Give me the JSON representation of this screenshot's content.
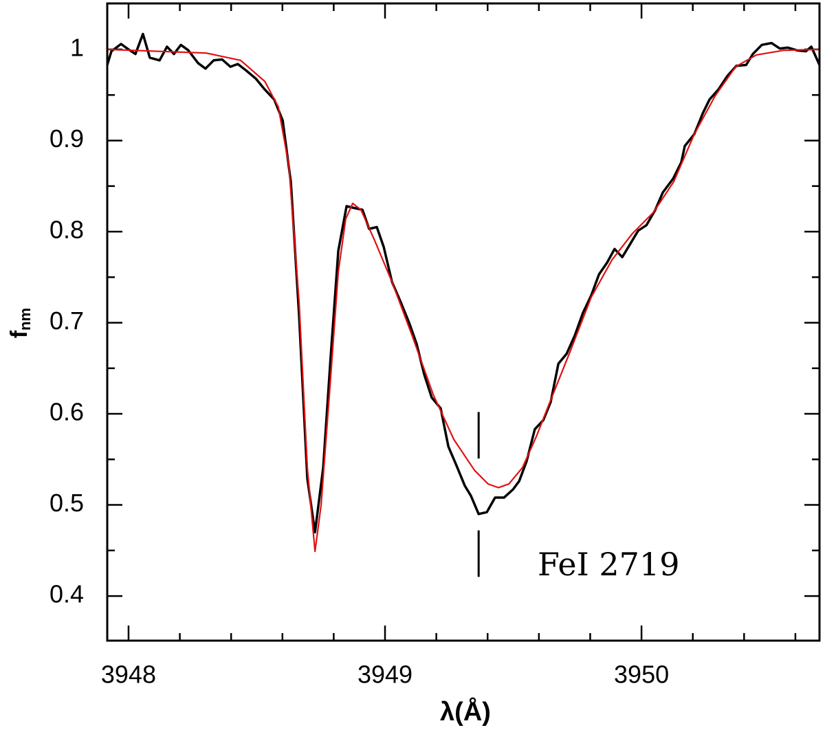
{
  "chart_data": {
    "type": "line",
    "xlabel": "λ(Å)",
    "ylabel": "f",
    "ylabel_sub": "nm",
    "annotation": "FeI 2719",
    "marker": {
      "x": 3949.365,
      "ranges": [
        [
          0.551,
          0.602
        ],
        [
          0.421,
          0.472
        ]
      ]
    },
    "xlim": [
      3947.917,
      3950.694
    ],
    "ylim": [
      0.351,
      1.0505
    ],
    "xticks": [
      3948,
      3949,
      3950
    ],
    "yticks": [
      0.4,
      0.5,
      0.6,
      0.7,
      0.8,
      0.9,
      1
    ],
    "xminorticks": [
      3948.2,
      3948.4,
      3948.6,
      3948.8,
      3949.2,
      3949.4,
      3949.6,
      3949.8,
      3950.2,
      3950.4,
      3950.6
    ],
    "yminorticks": [
      0.45,
      0.55,
      0.65,
      0.75,
      0.85,
      0.95
    ],
    "series": [
      {
        "color": "#000000",
        "x": [
          3947.917,
          3947.933,
          3947.971,
          3948.0,
          3948.027,
          3948.056,
          3948.083,
          3948.121,
          3948.15,
          3948.177,
          3948.204,
          3948.233,
          3948.271,
          3948.3,
          3948.332,
          3948.365,
          3948.397,
          3948.426,
          3948.458,
          3948.496,
          3948.531,
          3948.568,
          3948.601,
          3948.633,
          3948.665,
          3948.697,
          3948.727,
          3948.759,
          3948.788,
          3948.818,
          3948.85,
          3948.879,
          3948.912,
          3948.938,
          3948.968,
          3948.995,
          3949.027,
          3949.062,
          3949.094,
          3949.123,
          3949.153,
          3949.182,
          3949.217,
          3949.247,
          3949.279,
          3949.311,
          3949.335,
          3949.365,
          3949.397,
          3949.429,
          3949.464,
          3949.499,
          3949.523,
          3949.552,
          3949.584,
          3949.617,
          3949.646,
          3949.676,
          3949.708,
          3949.74,
          3949.772,
          3949.804,
          3949.834,
          3949.866,
          3949.895,
          3949.925,
          3949.957,
          3949.987,
          3950.019,
          3950.054,
          3950.083,
          3950.123,
          3950.155,
          3950.169,
          3950.206,
          3950.239,
          3950.265,
          3950.3,
          3950.335,
          3950.37,
          3950.408,
          3950.434,
          3950.469,
          3950.507,
          3950.539,
          3950.571,
          3950.606,
          3950.641,
          3950.662,
          3950.694
        ],
        "values": [
          0.983,
          0.998,
          1.006,
          1.0,
          0.995,
          1.017,
          0.991,
          0.988,
          1.003,
          0.995,
          1.005,
          0.999,
          0.985,
          0.979,
          0.988,
          0.989,
          0.981,
          0.984,
          0.977,
          0.968,
          0.956,
          0.945,
          0.922,
          0.854,
          0.707,
          0.529,
          0.47,
          0.541,
          0.662,
          0.779,
          0.828,
          0.826,
          0.824,
          0.803,
          0.805,
          0.783,
          0.745,
          0.722,
          0.7,
          0.677,
          0.643,
          0.618,
          0.606,
          0.564,
          0.543,
          0.521,
          0.51,
          0.49,
          0.492,
          0.508,
          0.508,
          0.517,
          0.526,
          0.548,
          0.583,
          0.593,
          0.613,
          0.655,
          0.666,
          0.686,
          0.711,
          0.73,
          0.753,
          0.766,
          0.781,
          0.772,
          0.787,
          0.801,
          0.807,
          0.824,
          0.843,
          0.858,
          0.876,
          0.894,
          0.907,
          0.93,
          0.945,
          0.956,
          0.971,
          0.982,
          0.983,
          0.995,
          1.005,
          1.007,
          1.001,
          1.002,
          0.999,
          0.998,
          1.003,
          0.983
        ]
      },
      {
        "color": "#e01010",
        "x": [
          3947.917,
          3948.303,
          3948.437,
          3948.531,
          3948.584,
          3948.625,
          3948.665,
          3948.697,
          3948.727,
          3948.751,
          3948.786,
          3948.818,
          3948.847,
          3948.874,
          3948.906,
          3948.96,
          3949.027,
          3949.107,
          3949.188,
          3949.268,
          3949.349,
          3949.402,
          3949.442,
          3949.483,
          3949.536,
          3949.59,
          3949.643,
          3949.724,
          3949.804,
          3949.885,
          3949.965,
          3950.046,
          3950.126,
          3950.206,
          3950.287,
          3950.367,
          3950.448,
          3950.555,
          3950.694
        ],
        "values": [
          1.0,
          0.996,
          0.988,
          0.965,
          0.937,
          0.873,
          0.722,
          0.541,
          0.449,
          0.5,
          0.632,
          0.756,
          0.814,
          0.831,
          0.824,
          0.79,
          0.745,
          0.685,
          0.621,
          0.572,
          0.538,
          0.523,
          0.519,
          0.523,
          0.541,
          0.575,
          0.613,
          0.67,
          0.728,
          0.769,
          0.798,
          0.821,
          0.855,
          0.907,
          0.949,
          0.981,
          0.994,
          0.999,
          1.0
        ]
      }
    ]
  }
}
